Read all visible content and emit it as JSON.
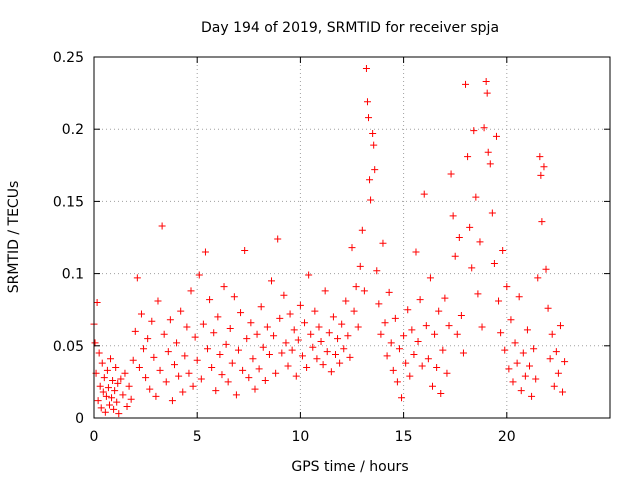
{
  "chart_data": {
    "type": "scatter",
    "title": "Day 194 of 2019, SRMTID for receiver spja",
    "xlabel": "GPS time / hours",
    "ylabel": "SRMTID / TECUs",
    "xlim": [
      0,
      25
    ],
    "ylim": [
      0,
      0.25
    ],
    "xticks": [
      0,
      5,
      10,
      15,
      20
    ],
    "xtick_labels": [
      "0",
      "5",
      "10",
      "15",
      "20"
    ],
    "yticks": [
      0,
      0.05,
      0.1,
      0.15,
      0.2,
      0.25
    ],
    "ytick_labels": [
      "0",
      "0.05",
      "0.1",
      "0.15",
      "0.2",
      "0.25"
    ],
    "grid": true,
    "marker": "+",
    "color": "#ff0000",
    "series": [
      {
        "name": "SRMTID",
        "points": [
          [
            0.0,
            0.065
          ],
          [
            0.05,
            0.052
          ],
          [
            0.1,
            0.031
          ],
          [
            0.15,
            0.08
          ],
          [
            0.2,
            0.012
          ],
          [
            0.25,
            0.045
          ],
          [
            0.3,
            0.022
          ],
          [
            0.35,
            0.007
          ],
          [
            0.4,
            0.038
          ],
          [
            0.45,
            0.018
          ],
          [
            0.5,
            0.028
          ],
          [
            0.55,
            0.004
          ],
          [
            0.6,
            0.015
          ],
          [
            0.65,
            0.033
          ],
          [
            0.7,
            0.021
          ],
          [
            0.75,
            0.009
          ],
          [
            0.8,
            0.041
          ],
          [
            0.85,
            0.014
          ],
          [
            0.9,
            0.026
          ],
          [
            0.95,
            0.006
          ],
          [
            1.0,
            0.019
          ],
          [
            1.05,
            0.035
          ],
          [
            1.1,
            0.011
          ],
          [
            1.15,
            0.024
          ],
          [
            1.2,
            0.003
          ],
          [
            1.3,
            0.027
          ],
          [
            1.4,
            0.016
          ],
          [
            1.5,
            0.031
          ],
          [
            1.6,
            0.008
          ],
          [
            1.7,
            0.022
          ],
          [
            1.8,
            0.013
          ],
          [
            1.9,
            0.04
          ],
          [
            2.0,
            0.06
          ],
          [
            2.1,
            0.097
          ],
          [
            2.2,
            0.035
          ],
          [
            2.3,
            0.072
          ],
          [
            2.4,
            0.048
          ],
          [
            2.5,
            0.028
          ],
          [
            2.6,
            0.055
          ],
          [
            2.7,
            0.02
          ],
          [
            2.8,
            0.067
          ],
          [
            2.9,
            0.042
          ],
          [
            3.0,
            0.015
          ],
          [
            3.1,
            0.081
          ],
          [
            3.2,
            0.033
          ],
          [
            3.3,
            0.133
          ],
          [
            3.4,
            0.058
          ],
          [
            3.5,
            0.025
          ],
          [
            3.6,
            0.046
          ],
          [
            3.7,
            0.068
          ],
          [
            3.8,
            0.012
          ],
          [
            3.9,
            0.037
          ],
          [
            4.0,
            0.052
          ],
          [
            4.1,
            0.029
          ],
          [
            4.2,
            0.074
          ],
          [
            4.3,
            0.018
          ],
          [
            4.4,
            0.043
          ],
          [
            4.5,
            0.063
          ],
          [
            4.6,
            0.031
          ],
          [
            4.7,
            0.088
          ],
          [
            4.8,
            0.022
          ],
          [
            4.9,
            0.056
          ],
          [
            5.0,
            0.04
          ],
          [
            5.1,
            0.099
          ],
          [
            5.2,
            0.027
          ],
          [
            5.3,
            0.065
          ],
          [
            5.4,
            0.115
          ],
          [
            5.5,
            0.048
          ],
          [
            5.6,
            0.082
          ],
          [
            5.7,
            0.035
          ],
          [
            5.8,
            0.059
          ],
          [
            5.9,
            0.019
          ],
          [
            6.0,
            0.07
          ],
          [
            6.1,
            0.044
          ],
          [
            6.2,
            0.03
          ],
          [
            6.3,
            0.091
          ],
          [
            6.4,
            0.051
          ],
          [
            6.5,
            0.025
          ],
          [
            6.6,
            0.062
          ],
          [
            6.7,
            0.038
          ],
          [
            6.8,
            0.084
          ],
          [
            6.9,
            0.016
          ],
          [
            7.0,
            0.047
          ],
          [
            7.1,
            0.073
          ],
          [
            7.2,
            0.033
          ],
          [
            7.3,
            0.116
          ],
          [
            7.4,
            0.055
          ],
          [
            7.5,
            0.028
          ],
          [
            7.6,
            0.066
          ],
          [
            7.7,
            0.041
          ],
          [
            7.8,
            0.02
          ],
          [
            7.9,
            0.058
          ],
          [
            8.0,
            0.034
          ],
          [
            8.1,
            0.077
          ],
          [
            8.2,
            0.049
          ],
          [
            8.3,
            0.026
          ],
          [
            8.4,
            0.063
          ],
          [
            8.5,
            0.044
          ],
          [
            8.6,
            0.095
          ],
          [
            8.7,
            0.057
          ],
          [
            8.8,
            0.031
          ],
          [
            8.9,
            0.124
          ],
          [
            9.0,
            0.069
          ],
          [
            9.1,
            0.045
          ],
          [
            9.2,
            0.085
          ],
          [
            9.3,
            0.052
          ],
          [
            9.4,
            0.036
          ],
          [
            9.5,
            0.072
          ],
          [
            9.6,
            0.047
          ],
          [
            9.7,
            0.061
          ],
          [
            9.8,
            0.029
          ],
          [
            9.9,
            0.054
          ],
          [
            10.0,
            0.078
          ],
          [
            10.1,
            0.043
          ],
          [
            10.2,
            0.066
          ],
          [
            10.3,
            0.035
          ],
          [
            10.4,
            0.099
          ],
          [
            10.5,
            0.058
          ],
          [
            10.6,
            0.049
          ],
          [
            10.7,
            0.074
          ],
          [
            10.8,
            0.041
          ],
          [
            10.9,
            0.063
          ],
          [
            11.0,
            0.053
          ],
          [
            11.1,
            0.037
          ],
          [
            11.2,
            0.088
          ],
          [
            11.3,
            0.046
          ],
          [
            11.4,
            0.059
          ],
          [
            11.5,
            0.032
          ],
          [
            11.6,
            0.07
          ],
          [
            11.7,
            0.044
          ],
          [
            11.8,
            0.055
          ],
          [
            11.9,
            0.038
          ],
          [
            12.0,
            0.065
          ],
          [
            12.1,
            0.048
          ],
          [
            12.2,
            0.081
          ],
          [
            12.3,
            0.057
          ],
          [
            12.4,
            0.042
          ],
          [
            12.5,
            0.118
          ],
          [
            12.6,
            0.074
          ],
          [
            12.7,
            0.091
          ],
          [
            12.8,
            0.063
          ],
          [
            12.9,
            0.105
          ],
          [
            13.0,
            0.13
          ],
          [
            13.1,
            0.088
          ],
          [
            13.2,
            0.242
          ],
          [
            13.25,
            0.219
          ],
          [
            13.3,
            0.208
          ],
          [
            13.35,
            0.165
          ],
          [
            13.4,
            0.151
          ],
          [
            13.5,
            0.197
          ],
          [
            13.55,
            0.189
          ],
          [
            13.6,
            0.172
          ],
          [
            13.7,
            0.102
          ],
          [
            13.8,
            0.079
          ],
          [
            13.9,
            0.058
          ],
          [
            14.0,
            0.121
          ],
          [
            14.1,
            0.066
          ],
          [
            14.2,
            0.043
          ],
          [
            14.3,
            0.087
          ],
          [
            14.4,
            0.052
          ],
          [
            14.5,
            0.033
          ],
          [
            14.6,
            0.069
          ],
          [
            14.7,
            0.025
          ],
          [
            14.8,
            0.048
          ],
          [
            14.9,
            0.014
          ],
          [
            15.0,
            0.057
          ],
          [
            15.1,
            0.038
          ],
          [
            15.2,
            0.075
          ],
          [
            15.3,
            0.029
          ],
          [
            15.4,
            0.061
          ],
          [
            15.5,
            0.044
          ],
          [
            15.6,
            0.115
          ],
          [
            15.7,
            0.053
          ],
          [
            15.8,
            0.082
          ],
          [
            15.9,
            0.036
          ],
          [
            16.0,
            0.155
          ],
          [
            16.1,
            0.064
          ],
          [
            16.2,
            0.041
          ],
          [
            16.3,
            0.097
          ],
          [
            16.4,
            0.022
          ],
          [
            16.5,
            0.058
          ],
          [
            16.6,
            0.035
          ],
          [
            16.7,
            0.074
          ],
          [
            16.8,
            0.017
          ],
          [
            16.9,
            0.047
          ],
          [
            17.0,
            0.083
          ],
          [
            17.1,
            0.031
          ],
          [
            17.2,
            0.064
          ],
          [
            17.3,
            0.169
          ],
          [
            17.4,
            0.14
          ],
          [
            17.5,
            0.112
          ],
          [
            17.6,
            0.058
          ],
          [
            17.7,
            0.125
          ],
          [
            17.8,
            0.071
          ],
          [
            17.9,
            0.045
          ],
          [
            18.0,
            0.231
          ],
          [
            18.1,
            0.181
          ],
          [
            18.2,
            0.132
          ],
          [
            18.3,
            0.104
          ],
          [
            18.4,
            0.199
          ],
          [
            18.5,
            0.153
          ],
          [
            18.6,
            0.086
          ],
          [
            18.7,
            0.122
          ],
          [
            18.8,
            0.063
          ],
          [
            18.9,
            0.201
          ],
          [
            19.0,
            0.233
          ],
          [
            19.05,
            0.225
          ],
          [
            19.1,
            0.184
          ],
          [
            19.2,
            0.176
          ],
          [
            19.3,
            0.142
          ],
          [
            19.4,
            0.107
          ],
          [
            19.5,
            0.195
          ],
          [
            19.6,
            0.081
          ],
          [
            19.7,
            0.059
          ],
          [
            19.8,
            0.116
          ],
          [
            19.9,
            0.047
          ],
          [
            20.0,
            0.091
          ],
          [
            20.1,
            0.034
          ],
          [
            20.2,
            0.068
          ],
          [
            20.3,
            0.025
          ],
          [
            20.4,
            0.052
          ],
          [
            20.5,
            0.038
          ],
          [
            20.6,
            0.084
          ],
          [
            20.7,
            0.019
          ],
          [
            20.8,
            0.045
          ],
          [
            20.9,
            0.029
          ],
          [
            21.0,
            0.061
          ],
          [
            21.1,
            0.036
          ],
          [
            21.2,
            0.015
          ],
          [
            21.3,
            0.048
          ],
          [
            21.4,
            0.027
          ],
          [
            21.5,
            0.097
          ],
          [
            21.6,
            0.181
          ],
          [
            21.65,
            0.168
          ],
          [
            21.7,
            0.136
          ],
          [
            21.8,
            0.174
          ],
          [
            21.9,
            0.103
          ],
          [
            22.0,
            0.076
          ],
          [
            22.1,
            0.041
          ],
          [
            22.2,
            0.058
          ],
          [
            22.3,
            0.022
          ],
          [
            22.4,
            0.046
          ],
          [
            22.5,
            0.031
          ],
          [
            22.6,
            0.064
          ],
          [
            22.7,
            0.018
          ],
          [
            22.8,
            0.039
          ]
        ]
      }
    ]
  }
}
